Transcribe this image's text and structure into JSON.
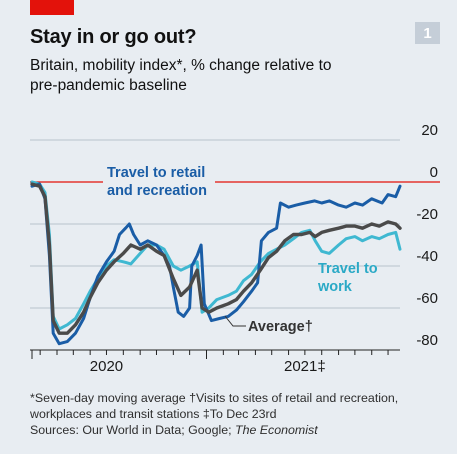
{
  "badge": "1",
  "title": "Stay in or go out?",
  "subtitle": "Britain, mobility index*, % change relative to pre-pandemic baseline",
  "footnotes": {
    "line1": "*Seven-day moving average  †Visits to sites of retail and recreation, workplaces and transit stations  ‡To Dec 23rd",
    "sources_prefix": "Sources: Our World in Data; Google; ",
    "sources_italic": "The Economist"
  },
  "colors": {
    "retail": "#1a5da6",
    "work": "#3fb8d1",
    "average": "#4a4a4a",
    "baseline": "#e3120b",
    "grid": "#b9c3cc",
    "label_blue": "#1a5da6",
    "label_cyan": "#2aa9c6"
  },
  "chart_data": {
    "type": "line",
    "title": "Stay in or go out?",
    "subtitle": "Britain, mobility index*, % change relative to pre-pandemic baseline",
    "ylim": [
      -85,
      20
    ],
    "yticks": [
      20,
      0,
      -20,
      -40,
      -60,
      -80
    ],
    "xlim": [
      "2020-02-15",
      "2021-12-23"
    ],
    "x_tick_labels": [
      {
        "date": "2020-07-01",
        "label": "2020"
      },
      {
        "date": "2021-07-01",
        "label": "2021‡"
      }
    ],
    "baseline": 0,
    "grid": true,
    "labels": {
      "retail": [
        "Travel to retail",
        "and recreation"
      ],
      "work": [
        "Travel to",
        "work"
      ],
      "average": "Average†"
    },
    "series": [
      {
        "name": "Travel to retail and recreation",
        "key": "retail",
        "points": [
          [
            "2020-02-15",
            -2
          ],
          [
            "2020-02-29",
            -1
          ],
          [
            "2020-03-10",
            -8
          ],
          [
            "2020-03-18",
            -35
          ],
          [
            "2020-03-25",
            -72
          ],
          [
            "2020-04-05",
            -77
          ],
          [
            "2020-04-20",
            -76
          ],
          [
            "2020-05-05",
            -72
          ],
          [
            "2020-05-20",
            -65
          ],
          [
            "2020-06-01",
            -55
          ],
          [
            "2020-06-15",
            -45
          ],
          [
            "2020-07-01",
            -38
          ],
          [
            "2020-07-15",
            -33
          ],
          [
            "2020-07-25",
            -25
          ],
          [
            "2020-08-05",
            -22
          ],
          [
            "2020-08-12",
            -20
          ],
          [
            "2020-08-20",
            -25
          ],
          [
            "2020-09-01",
            -30
          ],
          [
            "2020-09-15",
            -28
          ],
          [
            "2020-10-01",
            -30
          ],
          [
            "2020-10-15",
            -35
          ],
          [
            "2020-10-25",
            -40
          ],
          [
            "2020-11-01",
            -50
          ],
          [
            "2020-11-10",
            -62
          ],
          [
            "2020-11-20",
            -64
          ],
          [
            "2020-12-01",
            -60
          ],
          [
            "2020-12-05",
            -40
          ],
          [
            "2020-12-15",
            -35
          ],
          [
            "2020-12-22",
            -30
          ],
          [
            "2020-12-28",
            -58
          ],
          [
            "2021-01-10",
            -66
          ],
          [
            "2021-01-25",
            -65
          ],
          [
            "2021-02-10",
            -64
          ],
          [
            "2021-02-25",
            -61
          ],
          [
            "2021-03-10",
            -57
          ],
          [
            "2021-03-25",
            -52
          ],
          [
            "2021-04-05",
            -48
          ],
          [
            "2021-04-12",
            -28
          ],
          [
            "2021-04-25",
            -24
          ],
          [
            "2021-05-10",
            -22
          ],
          [
            "2021-05-17",
            -10
          ],
          [
            "2021-06-01",
            -12
          ],
          [
            "2021-06-15",
            -11
          ],
          [
            "2021-07-01",
            -10
          ],
          [
            "2021-07-19",
            -9
          ],
          [
            "2021-08-01",
            -10
          ],
          [
            "2021-08-15",
            -9
          ],
          [
            "2021-09-01",
            -11
          ],
          [
            "2021-09-15",
            -12
          ],
          [
            "2021-10-01",
            -10
          ],
          [
            "2021-10-15",
            -11
          ],
          [
            "2021-11-01",
            -8
          ],
          [
            "2021-11-20",
            -10
          ],
          [
            "2021-12-01",
            -6
          ],
          [
            "2021-12-15",
            -7
          ],
          [
            "2021-12-23",
            -2
          ]
        ]
      },
      {
        "name": "Travel to work",
        "key": "work",
        "points": [
          [
            "2020-02-15",
            0
          ],
          [
            "2020-02-29",
            -1
          ],
          [
            "2020-03-10",
            -5
          ],
          [
            "2020-03-18",
            -25
          ],
          [
            "2020-03-25",
            -64
          ],
          [
            "2020-04-05",
            -70
          ],
          [
            "2020-04-20",
            -68
          ],
          [
            "2020-05-05",
            -65
          ],
          [
            "2020-05-20",
            -58
          ],
          [
            "2020-06-01",
            -52
          ],
          [
            "2020-06-15",
            -46
          ],
          [
            "2020-07-01",
            -40
          ],
          [
            "2020-07-15",
            -37
          ],
          [
            "2020-08-01",
            -38
          ],
          [
            "2020-08-15",
            -39
          ],
          [
            "2020-09-01",
            -34
          ],
          [
            "2020-09-15",
            -30
          ],
          [
            "2020-10-01",
            -30
          ],
          [
            "2020-10-15",
            -32
          ],
          [
            "2020-11-01",
            -40
          ],
          [
            "2020-11-15",
            -42
          ],
          [
            "2020-12-01",
            -40
          ],
          [
            "2020-12-15",
            -38
          ],
          [
            "2020-12-24",
            -62
          ],
          [
            "2021-01-05",
            -60
          ],
          [
            "2021-01-20",
            -56
          ],
          [
            "2021-02-10",
            -54
          ],
          [
            "2021-02-25",
            -52
          ],
          [
            "2021-03-10",
            -47
          ],
          [
            "2021-03-25",
            -44
          ],
          [
            "2021-04-10",
            -38
          ],
          [
            "2021-04-25",
            -34
          ],
          [
            "2021-05-10",
            -32
          ],
          [
            "2021-05-25",
            -30
          ],
          [
            "2021-06-10",
            -27
          ],
          [
            "2021-06-25",
            -24
          ],
          [
            "2021-07-10",
            -23
          ],
          [
            "2021-07-20",
            -28
          ],
          [
            "2021-08-01",
            -33
          ],
          [
            "2021-08-15",
            -34
          ],
          [
            "2021-09-01",
            -30
          ],
          [
            "2021-09-15",
            -27
          ],
          [
            "2021-10-01",
            -26
          ],
          [
            "2021-10-15",
            -28
          ],
          [
            "2021-11-01",
            -26
          ],
          [
            "2021-11-15",
            -27
          ],
          [
            "2021-12-01",
            -25
          ],
          [
            "2021-12-15",
            -24
          ],
          [
            "2021-12-23",
            -32
          ]
        ]
      },
      {
        "name": "Average†",
        "key": "average",
        "points": [
          [
            "2020-02-15",
            -1
          ],
          [
            "2020-02-29",
            -2
          ],
          [
            "2020-03-10",
            -7
          ],
          [
            "2020-03-18",
            -30
          ],
          [
            "2020-03-25",
            -66
          ],
          [
            "2020-04-05",
            -72
          ],
          [
            "2020-04-20",
            -72
          ],
          [
            "2020-05-05",
            -68
          ],
          [
            "2020-05-20",
            -62
          ],
          [
            "2020-06-01",
            -55
          ],
          [
            "2020-06-15",
            -48
          ],
          [
            "2020-07-01",
            -42
          ],
          [
            "2020-07-15",
            -38
          ],
          [
            "2020-08-01",
            -34
          ],
          [
            "2020-08-15",
            -30
          ],
          [
            "2020-09-01",
            -32
          ],
          [
            "2020-09-15",
            -30
          ],
          [
            "2020-10-01",
            -33
          ],
          [
            "2020-10-15",
            -35
          ],
          [
            "2020-11-01",
            -46
          ],
          [
            "2020-11-15",
            -54
          ],
          [
            "2020-12-01",
            -50
          ],
          [
            "2020-12-15",
            -42
          ],
          [
            "2020-12-24",
            -60
          ],
          [
            "2021-01-05",
            -62
          ],
          [
            "2021-01-20",
            -60
          ],
          [
            "2021-02-10",
            -58
          ],
          [
            "2021-02-25",
            -56
          ],
          [
            "2021-03-10",
            -52
          ],
          [
            "2021-03-25",
            -48
          ],
          [
            "2021-04-10",
            -42
          ],
          [
            "2021-04-25",
            -36
          ],
          [
            "2021-05-10",
            -33
          ],
          [
            "2021-05-25",
            -28
          ],
          [
            "2021-06-10",
            -25
          ],
          [
            "2021-06-25",
            -25
          ],
          [
            "2021-07-10",
            -24
          ],
          [
            "2021-07-20",
            -26
          ],
          [
            "2021-08-01",
            -24
          ],
          [
            "2021-08-15",
            -23
          ],
          [
            "2021-09-01",
            -22
          ],
          [
            "2021-09-15",
            -21
          ],
          [
            "2021-10-01",
            -21
          ],
          [
            "2021-10-15",
            -22
          ],
          [
            "2021-11-01",
            -20
          ],
          [
            "2021-11-15",
            -21
          ],
          [
            "2021-12-01",
            -19
          ],
          [
            "2021-12-15",
            -20
          ],
          [
            "2021-12-23",
            -22
          ]
        ]
      }
    ]
  }
}
